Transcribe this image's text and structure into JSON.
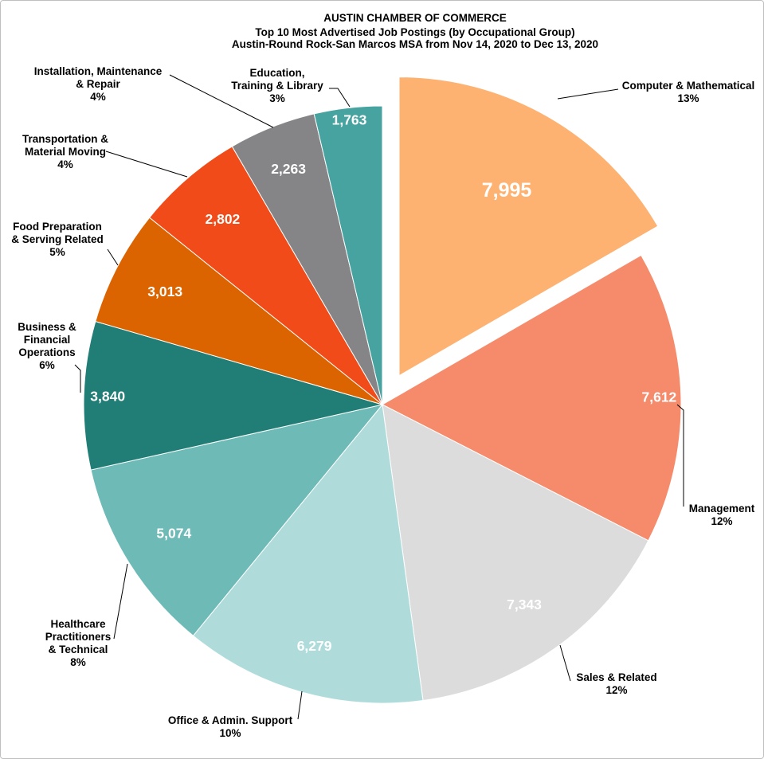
{
  "chart_data": {
    "type": "pie",
    "title": [
      "AUSTIN CHAMBER OF COMMERCE",
      "Top 10 Most Advertised Job Postings (by Occupational Group)",
      "Austin-Round Rock-San Marcos MSA from Nov 14, 2020 to Dec 13, 2020"
    ],
    "slices": [
      {
        "label": [
          "Computer & Mathematical"
        ],
        "value": 7995,
        "value_label": "7,995",
        "percent_label": "13%",
        "color": "#fdb271",
        "exploded": true
      },
      {
        "label": [
          "Management"
        ],
        "value": 7612,
        "value_label": "7,612",
        "percent_label": "12%",
        "color": "#f68b6c",
        "exploded": false
      },
      {
        "label": [
          "Sales & Related"
        ],
        "value": 7343,
        "value_label": "7,343",
        "percent_label": "12%",
        "color": "#dcdcdd",
        "exploded": false
      },
      {
        "label": [
          "Office & Admin.  Support"
        ],
        "value": 6279,
        "value_label": "6,279",
        "percent_label": "10%",
        "color": "#afdcda",
        "exploded": false
      },
      {
        "label": [
          "Healthcare",
          "Practitioners",
          "& Technical"
        ],
        "value": 5074,
        "value_label": "5,074",
        "percent_label": "8%",
        "color": "#6ebab7",
        "exploded": false
      },
      {
        "label": [
          "Business &",
          "Financial",
          "Operations"
        ],
        "value": 3840,
        "value_label": "3,840",
        "percent_label": "6%",
        "color": "#217e76",
        "exploded": false
      },
      {
        "label": [
          "Food Preparation",
          "& Serving Related"
        ],
        "value": 3013,
        "value_label": "3,013",
        "percent_label": "5%",
        "color": "#dc6400",
        "exploded": false
      },
      {
        "label": [
          "Transportation &",
          "Material Moving"
        ],
        "value": 2802,
        "value_label": "2,802",
        "percent_label": "4%",
        "color": "#f04b18",
        "exploded": false
      },
      {
        "label": [
          "Installation, Maintenance",
          "& Repair"
        ],
        "value": 2263,
        "value_label": "2,263",
        "percent_label": "4%",
        "color": "#858588",
        "exploded": false
      },
      {
        "label": [
          "Education,",
          "Training & Library"
        ],
        "value": 1763,
        "value_label": "1,763",
        "percent_label": "3%",
        "color": "#47a3a0",
        "exploded": false
      }
    ]
  }
}
